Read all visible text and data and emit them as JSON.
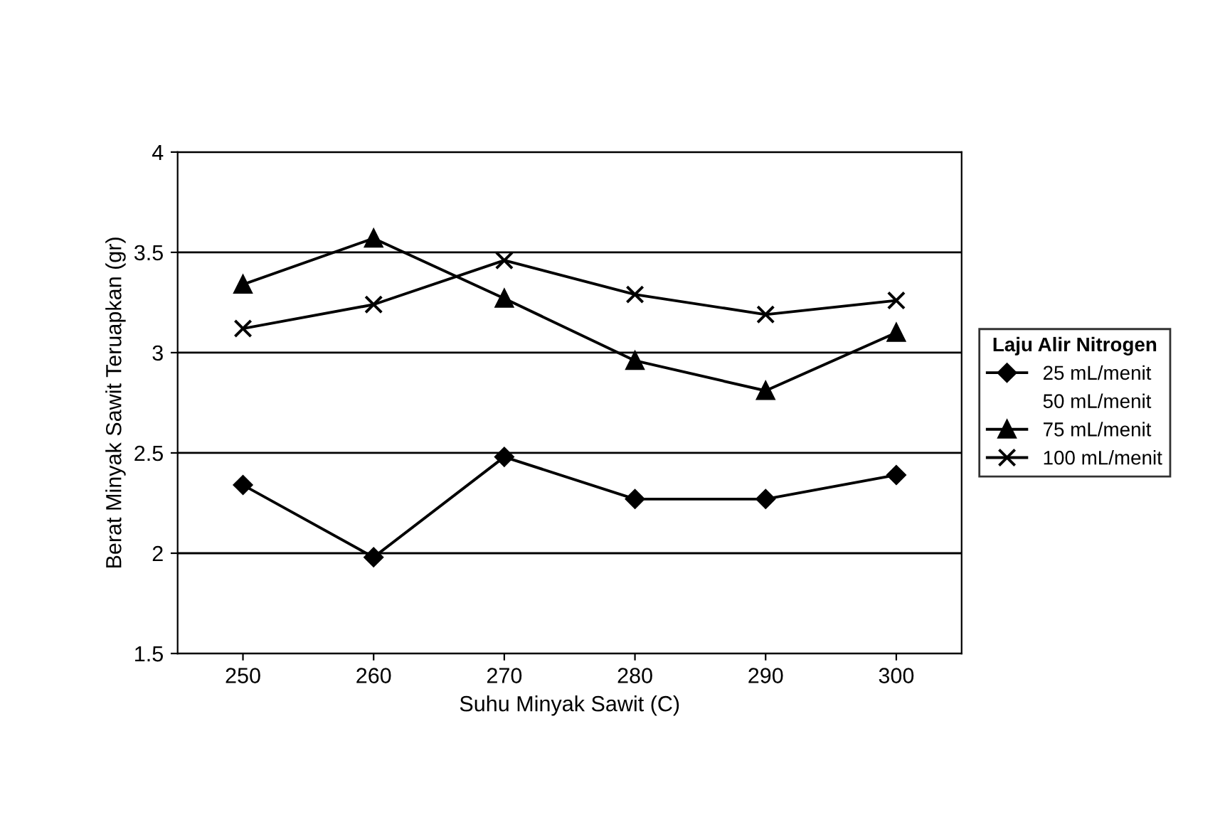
{
  "chart_data": {
    "type": "line",
    "xlabel": "Suhu Minyak Sawit (C)",
    "ylabel": "Berat Minyak Sawit Teruapkan (gr)",
    "legend_title": "Laju Alir Nitrogen",
    "legend": "right",
    "categories": [
      "250",
      "260",
      "270",
      "280",
      "290",
      "300"
    ],
    "ylim": [
      1.5,
      4
    ],
    "yticks": [
      1.5,
      2,
      2.5,
      3,
      3.5,
      4
    ],
    "grid": "y",
    "series": [
      {
        "name": "25 mL/menit",
        "color": "#000000",
        "marker": "diamond",
        "values": [
          2.34,
          1.98,
          2.48,
          2.27,
          2.27,
          2.39
        ]
      },
      {
        "name": "50 mL/menit",
        "marker": "none",
        "values": [
          null,
          null,
          null,
          null,
          null,
          null
        ]
      },
      {
        "name": "75 mL/menit",
        "color": "#000000",
        "marker": "triangle",
        "values": [
          3.34,
          3.57,
          3.27,
          2.96,
          2.81,
          3.1
        ]
      },
      {
        "name": "100 mL/menit",
        "color": "#000000",
        "marker": "cross",
        "values": [
          3.12,
          3.24,
          3.46,
          3.29,
          3.19,
          3.26
        ]
      }
    ]
  }
}
